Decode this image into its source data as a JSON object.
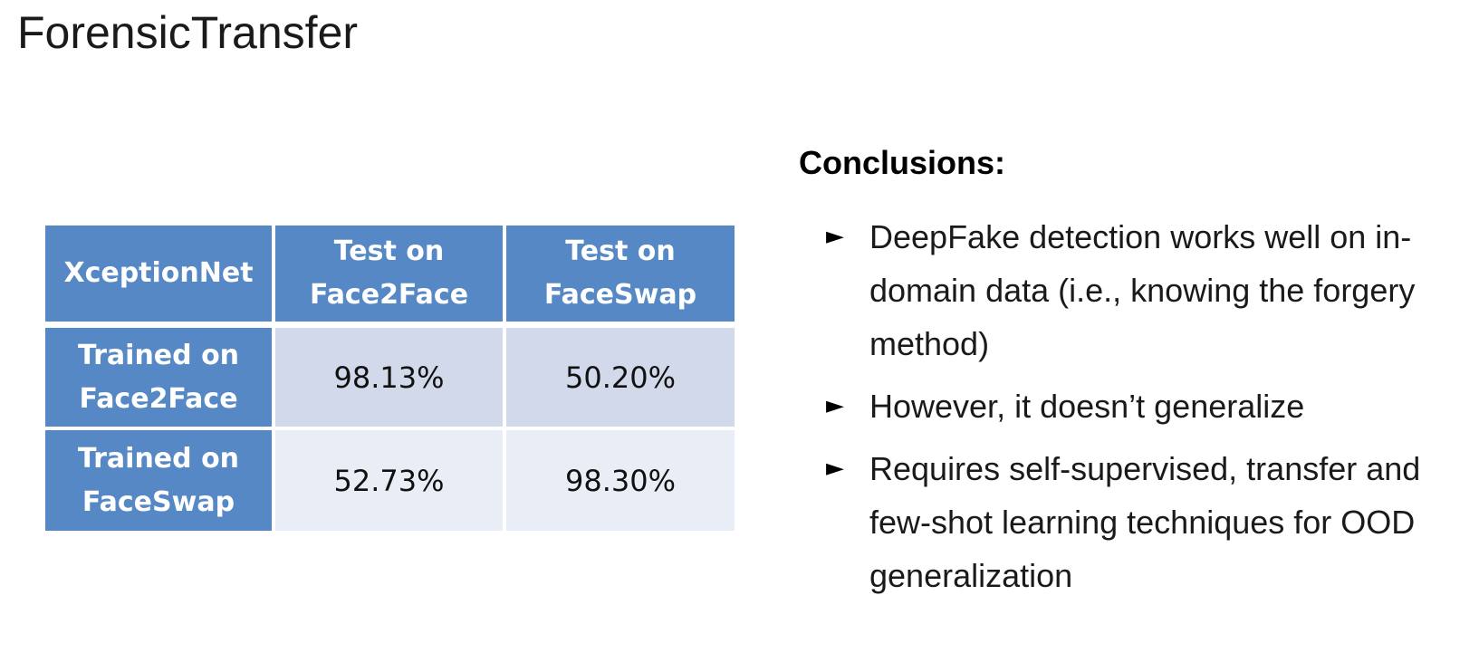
{
  "slide": {
    "title": "ForensicTransfer"
  },
  "table": {
    "header": [
      "XceptionNet",
      "Test on Face2Face",
      "Test on FaceSwap"
    ],
    "rows": [
      {
        "label": "Trained on Face2Face",
        "values": [
          "98.13%",
          "50.20%"
        ]
      },
      {
        "label": "Trained on FaceSwap",
        "values": [
          "52.73%",
          "98.30%"
        ]
      }
    ],
    "colors": {
      "header_fill": "#5688c5",
      "row_dark_fill": "#d1d9ea",
      "row_light_fill": "#e9edf5"
    }
  },
  "conclusions": {
    "heading": "Conclusions:",
    "bullet_icon": "right-triangle-pointer",
    "items": [
      "DeepFake detection works well on in-domain data (i.e., knowing the forgery method)",
      "However, it doesn’t generalize",
      "Requires self-supervised, transfer and few-shot learning techniques for OOD generalization"
    ]
  }
}
